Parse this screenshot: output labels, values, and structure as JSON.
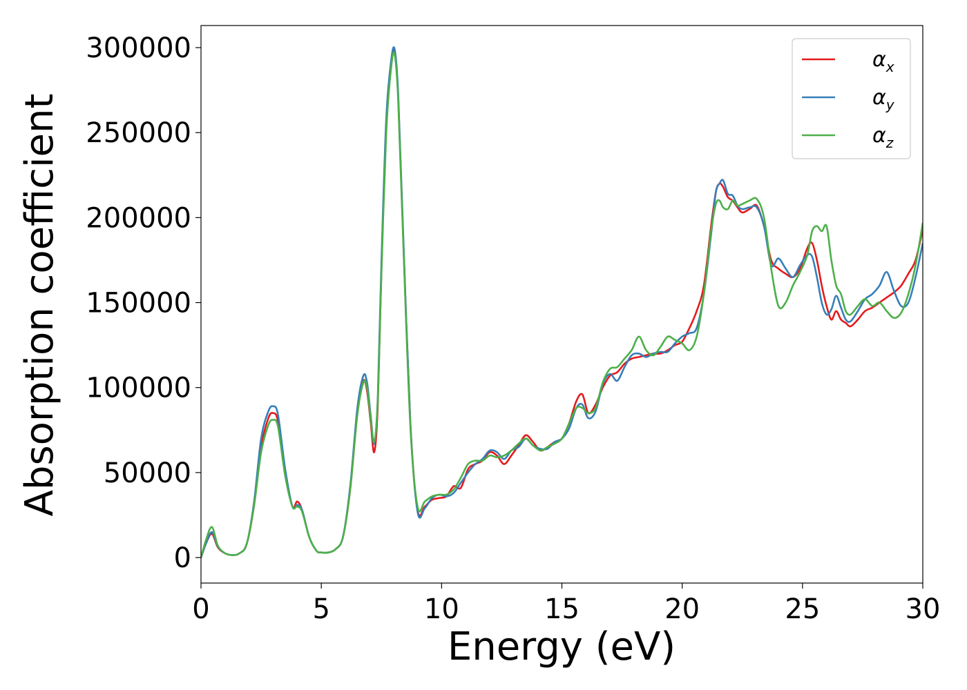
{
  "chart_data": {
    "type": "line",
    "title": "",
    "xlabel": "Energy (eV)",
    "ylabel": "Absorption coefficient",
    "xlim": [
      0,
      30
    ],
    "ylim": [
      -15000,
      313000
    ],
    "xticks": [
      0,
      5,
      10,
      15,
      20,
      25,
      30
    ],
    "yticks": [
      0,
      50000,
      100000,
      150000,
      200000,
      250000,
      300000
    ],
    "grid": false,
    "legend_position": "top-right",
    "series": [
      {
        "name": "α",
        "sub": "x",
        "color": "#e41a1c",
        "x": [
          0.0,
          0.2,
          0.45,
          0.7,
          1.0,
          1.3,
          1.6,
          1.9,
          2.2,
          2.5,
          2.8,
          3.0,
          3.2,
          3.5,
          3.8,
          4.0,
          4.2,
          4.5,
          4.8,
          5.0,
          5.3,
          5.6,
          5.9,
          6.2,
          6.5,
          6.75,
          6.9,
          7.05,
          7.2,
          7.35,
          7.5,
          7.7,
          7.9,
          8.05,
          8.2,
          8.4,
          8.7,
          9.0,
          9.3,
          9.6,
          9.9,
          10.2,
          10.5,
          10.8,
          11.1,
          11.4,
          11.7,
          12.0,
          12.3,
          12.6,
          12.9,
          13.2,
          13.5,
          13.8,
          14.1,
          14.4,
          14.7,
          15.0,
          15.3,
          15.6,
          15.85,
          16.1,
          16.4,
          16.7,
          17.0,
          17.3,
          17.6,
          17.9,
          18.2,
          18.5,
          18.8,
          19.1,
          19.4,
          19.7,
          20.0,
          20.3,
          20.6,
          20.9,
          21.2,
          21.4,
          21.55,
          21.7,
          21.9,
          22.1,
          22.3,
          22.5,
          22.8,
          23.1,
          23.4,
          23.7,
          24.0,
          24.3,
          24.6,
          24.9,
          25.2,
          25.4,
          25.6,
          25.8,
          26.0,
          26.2,
          26.4,
          26.6,
          26.8,
          27.0,
          27.3,
          27.6,
          27.9,
          28.2,
          28.5,
          28.8,
          29.1,
          29.4,
          29.7,
          30.0
        ],
        "values": [
          0,
          8000,
          14000,
          6000,
          2500,
          1500,
          2500,
          8000,
          30000,
          65000,
          82000,
          85000,
          80000,
          50000,
          30000,
          33000,
          28000,
          12000,
          4000,
          3000,
          3000,
          5000,
          12000,
          40000,
          85000,
          104000,
          98000,
          80000,
          62000,
          90000,
          170000,
          255000,
          290000,
          298000,
          270000,
          190000,
          80000,
          28000,
          30000,
          34000,
          35000,
          36000,
          42000,
          41000,
          52000,
          55000,
          57000,
          62000,
          60000,
          55000,
          60000,
          66000,
          72000,
          68000,
          63000,
          65000,
          68000,
          70000,
          79000,
          92000,
          96000,
          85000,
          90000,
          100000,
          107000,
          109000,
          114000,
          117000,
          118000,
          119000,
          120000,
          120000,
          122000,
          125000,
          127000,
          135000,
          145000,
          160000,
          195000,
          215000,
          220000,
          218000,
          212000,
          210000,
          206000,
          203000,
          205000,
          207000,
          195000,
          175000,
          170000,
          167000,
          165000,
          170000,
          182000,
          185000,
          175000,
          160000,
          148000,
          140000,
          145000,
          140000,
          138000,
          136000,
          140000,
          145000,
          147000,
          150000,
          153000,
          156000,
          160000,
          167000,
          175000,
          193000
        ]
      },
      {
        "name": "α",
        "sub": "y",
        "color": "#377eb8",
        "x": [
          0.0,
          0.2,
          0.45,
          0.7,
          1.0,
          1.3,
          1.6,
          1.9,
          2.2,
          2.5,
          2.8,
          3.0,
          3.2,
          3.5,
          3.8,
          4.0,
          4.2,
          4.5,
          4.8,
          5.0,
          5.3,
          5.6,
          5.9,
          6.2,
          6.5,
          6.75,
          6.9,
          7.05,
          7.2,
          7.35,
          7.5,
          7.7,
          7.9,
          8.05,
          8.2,
          8.4,
          8.7,
          9.0,
          9.3,
          9.6,
          9.9,
          10.2,
          10.5,
          10.8,
          11.1,
          11.4,
          11.7,
          12.0,
          12.3,
          12.6,
          12.9,
          13.2,
          13.5,
          13.8,
          14.1,
          14.4,
          14.7,
          15.0,
          15.3,
          15.6,
          15.85,
          16.1,
          16.4,
          16.7,
          17.0,
          17.3,
          17.6,
          17.9,
          18.2,
          18.5,
          18.8,
          19.1,
          19.4,
          19.7,
          20.0,
          20.3,
          20.6,
          20.9,
          21.2,
          21.4,
          21.55,
          21.7,
          21.9,
          22.1,
          22.3,
          22.5,
          22.8,
          23.1,
          23.4,
          23.7,
          24.0,
          24.3,
          24.6,
          24.9,
          25.2,
          25.4,
          25.6,
          25.8,
          26.0,
          26.2,
          26.4,
          26.6,
          26.8,
          27.0,
          27.3,
          27.6,
          27.9,
          28.2,
          28.5,
          28.8,
          29.1,
          29.4,
          29.7,
          30.0
        ],
        "values": [
          0,
          8000,
          15000,
          6500,
          2500,
          1500,
          2500,
          8000,
          32000,
          70000,
          86000,
          89000,
          84000,
          52000,
          30000,
          31000,
          28000,
          12000,
          4000,
          3000,
          3000,
          5000,
          12000,
          42000,
          88000,
          107000,
          103000,
          84000,
          67000,
          95000,
          175000,
          258000,
          292000,
          299000,
          272000,
          192000,
          80000,
          27000,
          29000,
          35000,
          37000,
          36000,
          38000,
          44000,
          50000,
          55000,
          58000,
          63000,
          62000,
          58000,
          63000,
          65000,
          70000,
          66000,
          64000,
          64000,
          68000,
          70000,
          76000,
          88000,
          90000,
          82000,
          86000,
          102000,
          108000,
          104000,
          112000,
          119000,
          120000,
          118000,
          120000,
          121000,
          121000,
          126000,
          130000,
          132000,
          135000,
          155000,
          190000,
          215000,
          220000,
          222000,
          214000,
          213000,
          207000,
          205000,
          206000,
          206000,
          195000,
          172000,
          176000,
          170000,
          165000,
          172000,
          178000,
          177000,
          165000,
          150000,
          143000,
          146000,
          154000,
          147000,
          140000,
          139000,
          145000,
          152000,
          155000,
          160000,
          168000,
          157000,
          148000,
          150000,
          165000,
          185000
        ]
      },
      {
        "name": "α",
        "sub": "z",
        "color": "#4daf4a",
        "x": [
          0.0,
          0.2,
          0.45,
          0.7,
          1.0,
          1.3,
          1.6,
          1.9,
          2.2,
          2.5,
          2.8,
          3.0,
          3.2,
          3.5,
          3.8,
          4.0,
          4.2,
          4.5,
          4.8,
          5.0,
          5.3,
          5.6,
          5.9,
          6.2,
          6.5,
          6.75,
          6.9,
          7.05,
          7.2,
          7.35,
          7.5,
          7.7,
          7.9,
          8.05,
          8.2,
          8.4,
          8.7,
          9.0,
          9.3,
          9.6,
          9.9,
          10.2,
          10.5,
          10.8,
          11.1,
          11.4,
          11.7,
          12.0,
          12.3,
          12.6,
          12.9,
          13.2,
          13.5,
          13.8,
          14.1,
          14.4,
          14.7,
          15.0,
          15.3,
          15.6,
          15.85,
          16.1,
          16.4,
          16.7,
          17.0,
          17.3,
          17.6,
          17.9,
          18.2,
          18.5,
          18.8,
          19.1,
          19.4,
          19.7,
          20.0,
          20.3,
          20.6,
          20.9,
          21.2,
          21.4,
          21.55,
          21.7,
          21.9,
          22.1,
          22.3,
          22.5,
          22.8,
          23.1,
          23.4,
          23.7,
          24.0,
          24.3,
          24.6,
          24.9,
          25.2,
          25.4,
          25.6,
          25.8,
          26.0,
          26.2,
          26.4,
          26.6,
          26.8,
          27.0,
          27.3,
          27.6,
          27.9,
          28.2,
          28.5,
          28.8,
          29.1,
          29.4,
          29.7,
          30.0
        ],
        "values": [
          0,
          10000,
          18000,
          7000,
          2500,
          1500,
          2500,
          8000,
          30000,
          62000,
          78000,
          81000,
          77000,
          48000,
          30000,
          30000,
          27000,
          12000,
          4000,
          3000,
          3000,
          5000,
          12000,
          40000,
          84000,
          103000,
          100000,
          82000,
          68000,
          93000,
          168000,
          250000,
          288000,
          296000,
          268000,
          188000,
          78000,
          30000,
          33000,
          36000,
          37000,
          37000,
          40000,
          47000,
          55000,
          57000,
          57000,
          60000,
          59000,
          60000,
          63000,
          67000,
          70000,
          66000,
          63000,
          65000,
          67000,
          70000,
          79000,
          88000,
          88000,
          85000,
          88000,
          103000,
          111000,
          112000,
          117000,
          122000,
          130000,
          122000,
          119000,
          124000,
          130000,
          128000,
          126000,
          122000,
          130000,
          155000,
          192000,
          208000,
          210000,
          206000,
          205000,
          210000,
          207000,
          208000,
          210000,
          211000,
          200000,
          170000,
          148000,
          150000,
          160000,
          168000,
          178000,
          192000,
          195000,
          192000,
          195000,
          175000,
          160000,
          155000,
          145000,
          143000,
          148000,
          152000,
          148000,
          150000,
          145000,
          141000,
          144000,
          155000,
          172000,
          197000
        ]
      }
    ]
  }
}
